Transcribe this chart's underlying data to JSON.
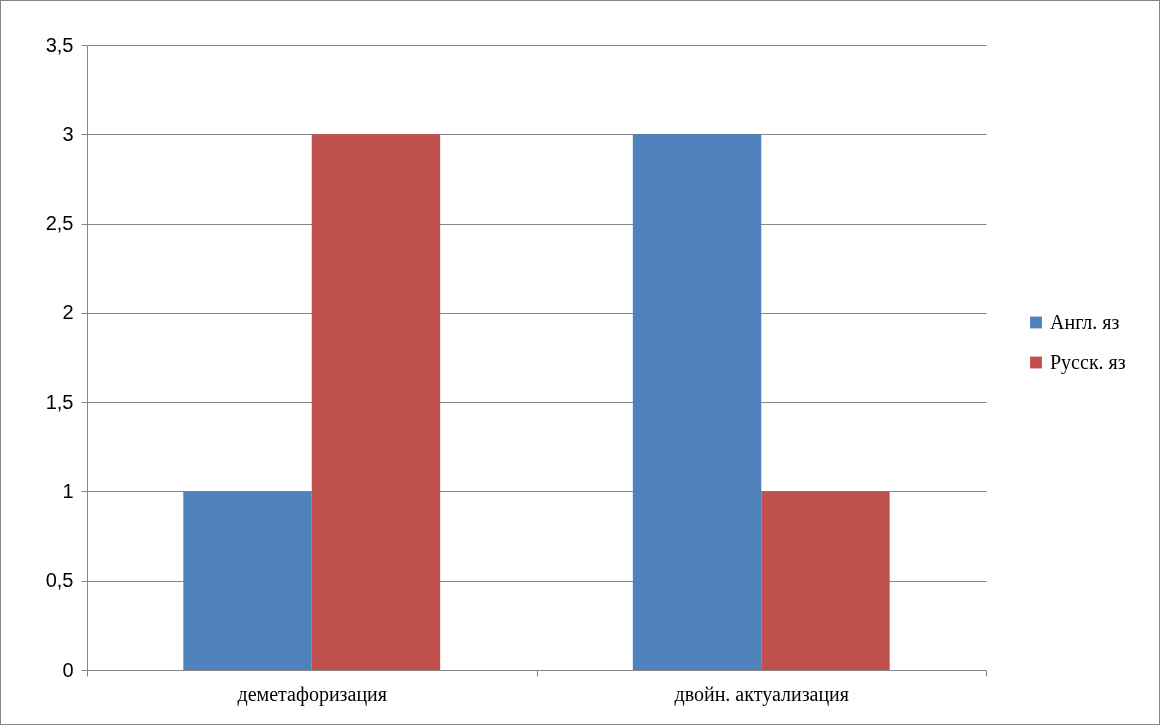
{
  "chart_data": {
    "type": "bar",
    "categories": [
      "деметафоризация",
      "двойн. актуализация"
    ],
    "series": [
      {
        "name": "Англ. яз",
        "color": "#4f81bd",
        "values": [
          1,
          3
        ]
      },
      {
        "name": "Русск. яз",
        "color": "#c0504d",
        "values": [
          3,
          1
        ]
      }
    ],
    "ylim": [
      0,
      3.5
    ],
    "yticks": [
      0,
      {
        "value": 0.5,
        "label": "0,5"
      },
      1,
      {
        "value": 1.5,
        "label": "1,5"
      },
      2,
      {
        "value": 2.5,
        "label": "2,5"
      },
      3,
      {
        "value": 3.5,
        "label": "3,5"
      }
    ],
    "grid": "y",
    "legend": "right"
  }
}
